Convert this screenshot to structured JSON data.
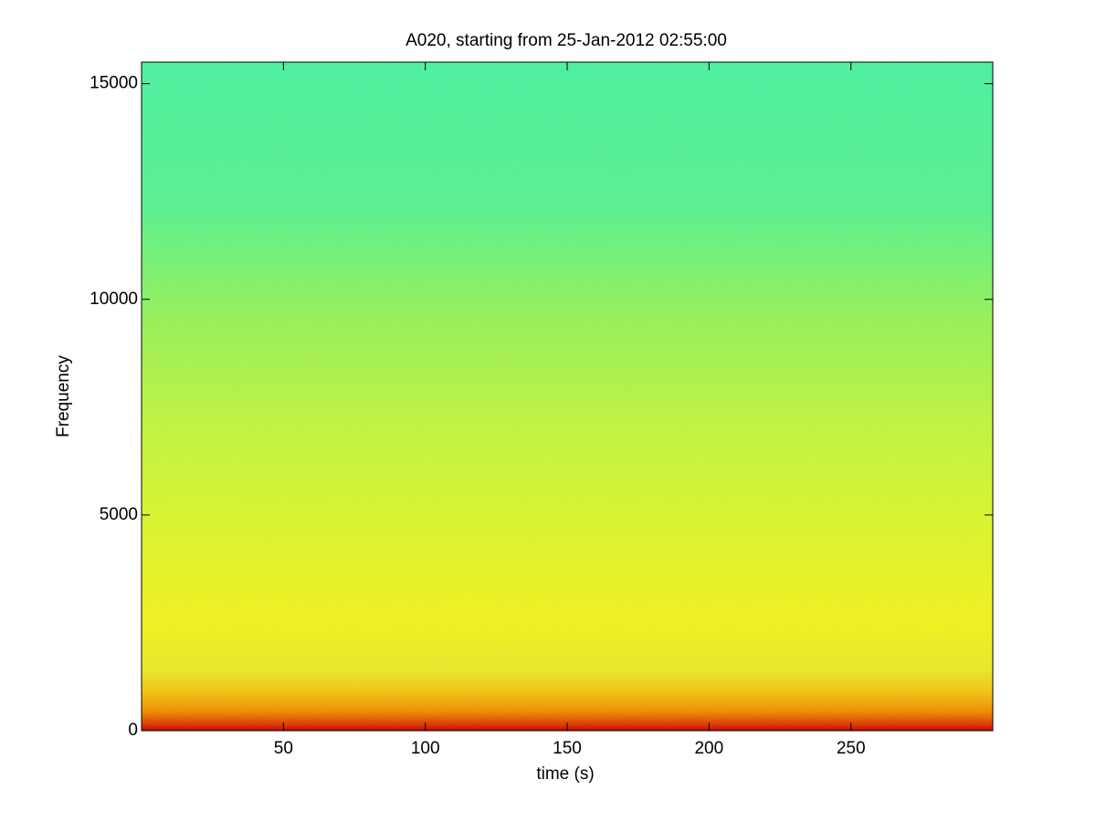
{
  "chart_data": {
    "type": "spectrogram",
    "title": "A020, starting from 25-Jan-2012 02:55:00",
    "x_label": "time (s)",
    "y_label": "Frequency",
    "xlim": [
      0,
      300
    ],
    "ylim": [
      0,
      15500
    ],
    "xticks": [
      50,
      100,
      150,
      200,
      250
    ],
    "yticks": [
      0,
      5000,
      10000,
      15000
    ]
  }
}
